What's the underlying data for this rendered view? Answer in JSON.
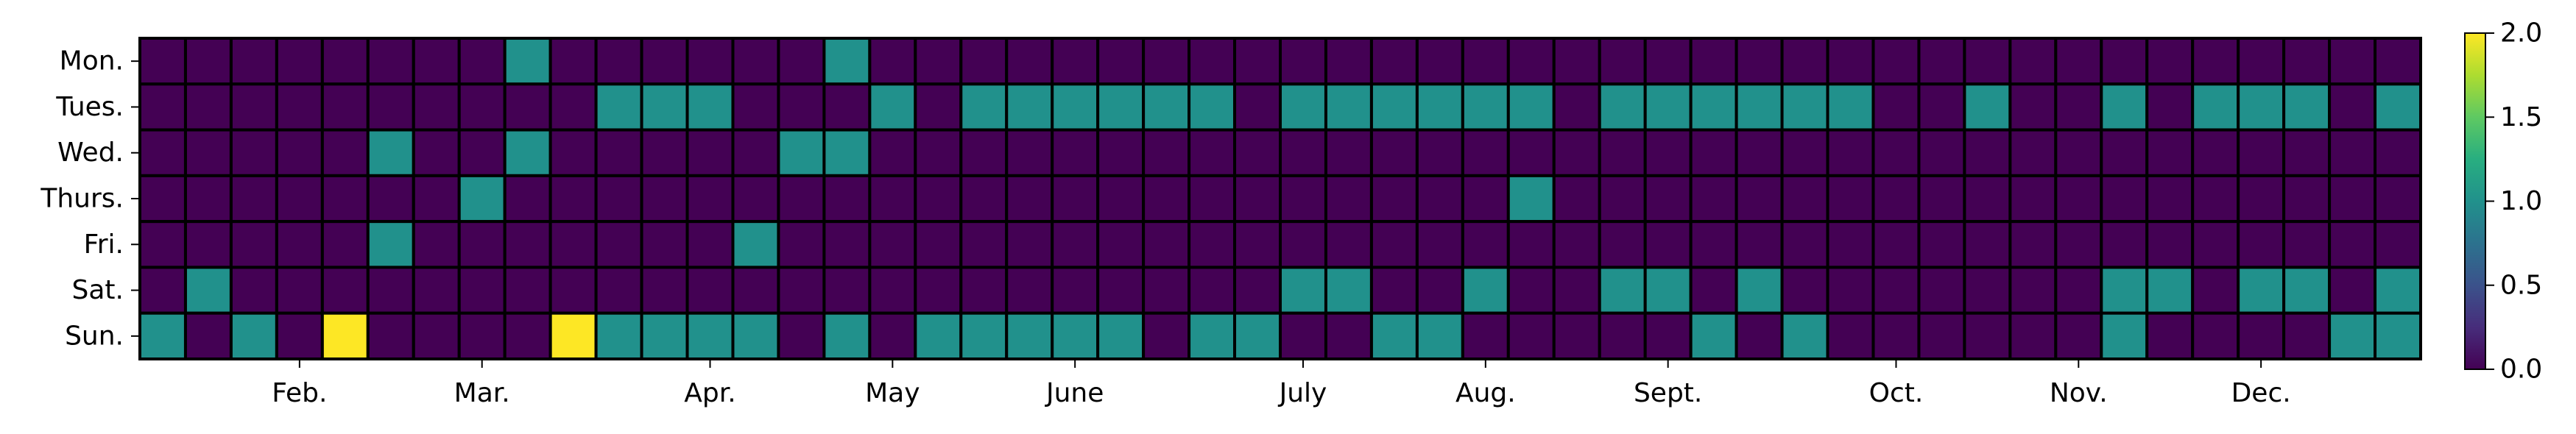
{
  "chart_data": {
    "type": "heatmap",
    "title": "",
    "xlabel": "",
    "ylabel": "",
    "rows": [
      "Mon.",
      "Tues.",
      "Wed.",
      "Thurs.",
      "Fri.",
      "Sat.",
      "Sun."
    ],
    "x_tick_labels": [
      {
        "label": "Feb.",
        "week": 3
      },
      {
        "label": "Mar.",
        "week": 7
      },
      {
        "label": "Apr.",
        "week": 12
      },
      {
        "label": "May",
        "week": 16
      },
      {
        "label": "June",
        "week": 20
      },
      {
        "label": "July",
        "week": 25
      },
      {
        "label": "Aug.",
        "week": 29
      },
      {
        "label": "Sept.",
        "week": 33
      },
      {
        "label": "Oct.",
        "week": 38
      },
      {
        "label": "Nov.",
        "week": 42
      },
      {
        "label": "Dec.",
        "week": 46
      }
    ],
    "values": [
      [
        0,
        0,
        0,
        0,
        0,
        0,
        0,
        0,
        1,
        0,
        0,
        0,
        0,
        0,
        0,
        1,
        0,
        0,
        0,
        0,
        0,
        0,
        0,
        0,
        0,
        0,
        0,
        0,
        0,
        0,
        0,
        0,
        0,
        0,
        0,
        0,
        0,
        0,
        0,
        0,
        0,
        0,
        0,
        0,
        0,
        0,
        0,
        0,
        0,
        0
      ],
      [
        0,
        0,
        0,
        0,
        0,
        0,
        0,
        0,
        0,
        0,
        1,
        1,
        1,
        0,
        0,
        0,
        1,
        0,
        1,
        1,
        1,
        1,
        1,
        1,
        0,
        1,
        1,
        1,
        1,
        1,
        1,
        0,
        1,
        1,
        1,
        1,
        1,
        1,
        0,
        0,
        1,
        0,
        0,
        1,
        0,
        1,
        1,
        1,
        0,
        1
      ],
      [
        0,
        0,
        0,
        0,
        0,
        1,
        0,
        0,
        1,
        0,
        0,
        0,
        0,
        0,
        1,
        1,
        0,
        0,
        0,
        0,
        0,
        0,
        0,
        0,
        0,
        0,
        0,
        0,
        0,
        0,
        0,
        0,
        0,
        0,
        0,
        0,
        0,
        0,
        0,
        0,
        0,
        0,
        0,
        0,
        0,
        0,
        0,
        0,
        0,
        0
      ],
      [
        0,
        0,
        0,
        0,
        0,
        0,
        0,
        1,
        0,
        0,
        0,
        0,
        0,
        0,
        0,
        0,
        0,
        0,
        0,
        0,
        0,
        0,
        0,
        0,
        0,
        0,
        0,
        0,
        0,
        0,
        1,
        0,
        0,
        0,
        0,
        0,
        0,
        0,
        0,
        0,
        0,
        0,
        0,
        0,
        0,
        0,
        0,
        0,
        0,
        0
      ],
      [
        0,
        0,
        0,
        0,
        0,
        1,
        0,
        0,
        0,
        0,
        0,
        0,
        0,
        1,
        0,
        0,
        0,
        0,
        0,
        0,
        0,
        0,
        0,
        0,
        0,
        0,
        0,
        0,
        0,
        0,
        0,
        0,
        0,
        0,
        0,
        0,
        0,
        0,
        0,
        0,
        0,
        0,
        0,
        0,
        0,
        0,
        0,
        0,
        0,
        0
      ],
      [
        0,
        1,
        0,
        0,
        0,
        0,
        0,
        0,
        0,
        0,
        0,
        0,
        0,
        0,
        0,
        0,
        0,
        0,
        0,
        0,
        0,
        0,
        0,
        0,
        0,
        1,
        1,
        0,
        0,
        1,
        0,
        0,
        1,
        1,
        0,
        1,
        0,
        0,
        0,
        0,
        0,
        0,
        0,
        1,
        1,
        0,
        1,
        1,
        0,
        1
      ],
      [
        1,
        0,
        1,
        0,
        2,
        0,
        0,
        0,
        0,
        2,
        1,
        1,
        1,
        1,
        0,
        1,
        0,
        1,
        1,
        1,
        1,
        1,
        0,
        1,
        1,
        0,
        0,
        1,
        1,
        0,
        0,
        0,
        0,
        0,
        1,
        0,
        1,
        0,
        0,
        0,
        0,
        0,
        0,
        1,
        0,
        0,
        0,
        0,
        1,
        1
      ]
    ],
    "colorbar": {
      "min": 0.0,
      "max": 2.0,
      "ticks": [
        "0.0",
        "0.5",
        "1.0",
        "1.5",
        "2.0"
      ],
      "colormap": "viridis",
      "color_min": "#440154",
      "color_mid": "#21918c",
      "color_max": "#fde725"
    },
    "grid": false,
    "legend": "colorbar-right"
  }
}
